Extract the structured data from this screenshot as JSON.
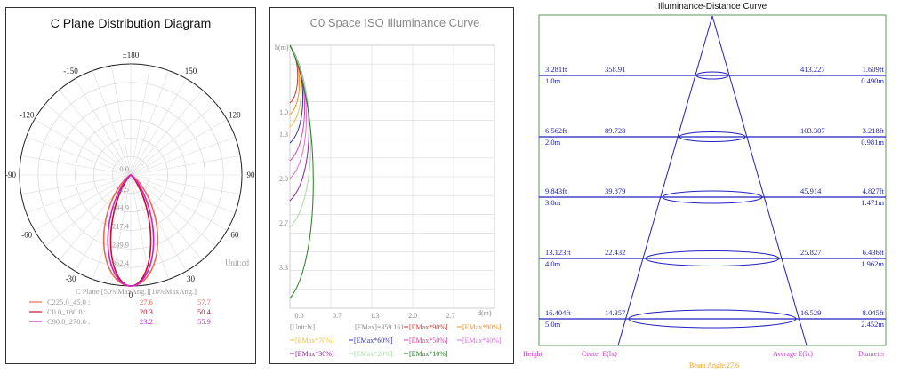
{
  "colors": {
    "c225": "#f06a50",
    "c0": "#c8102e",
    "c90": "#d020c8",
    "grid": "#cccccc",
    "blue": "#2020c0",
    "magenta": "#d030d0",
    "orange": "#f0a020",
    "green": "#5a9a5a"
  },
  "panel1": {
    "title": "C Plane Distribution Diagram",
    "unit": "Unit:cd",
    "angle_labels": [
      "±180",
      "150",
      "120",
      "90",
      "60",
      "30",
      "0",
      "-30",
      "-60",
      "-90",
      "-120",
      "-150"
    ],
    "radial_labels": [
      "0.0",
      "72.5",
      "144.9",
      "217.4",
      "289.9",
      "362.4"
    ],
    "table_header": "C Plane   [50%MaxAng.][10%MaxAng.]",
    "rows": [
      {
        "name": "C225.0_45.0 :",
        "v50": "27.6",
        "v10": "57.7"
      },
      {
        "name": "C0.0_180.0  :",
        "v50": "20.3",
        "v10": "50.4"
      },
      {
        "name": "C90.0_270.0 :",
        "v50": "23.2",
        "v10": "55.9"
      }
    ]
  },
  "panel2": {
    "title": "C0 Space ISO Illuminance Curve",
    "y_axis_label": "h(m)",
    "x_axis_label": "d(m)",
    "y_ticks": [
      "1.0",
      "1.3",
      "2.0",
      "2.7",
      "3.3"
    ],
    "x_ticks": [
      "0.0",
      "0.7",
      "1.3",
      "2.0",
      "2.7"
    ],
    "unit": "[Unit:lx]",
    "emax": "[EMax]=359.161",
    "legend": [
      {
        "label": "[EMax*90%]",
        "color": "#e03030"
      },
      {
        "label": "[EMax*80%]",
        "color": "#f09020"
      },
      {
        "label": "[EMax*70%]",
        "color": "#f0c040"
      },
      {
        "label": "[EMax*60%]",
        "color": "#3030c0"
      },
      {
        "label": "[EMax*50%]",
        "color": "#e040a0"
      },
      {
        "label": "[EMax*40%]",
        "color": "#e070e0"
      },
      {
        "label": "[EMax*30%]",
        "color": "#9020a0"
      },
      {
        "label": "[EMax*20%]",
        "color": "#a0e0a0"
      },
      {
        "label": "[EMax*10%]",
        "color": "#208020"
      }
    ]
  },
  "panel3": {
    "title": "Illuminance-Distance Curve",
    "rows": [
      {
        "ft": "3.281ft",
        "m": "1.0m",
        "center": "358.91",
        "avg": "413.227",
        "dia_ft": "1.609ft",
        "dia_m": "0.490m"
      },
      {
        "ft": "6.562ft",
        "m": "2.0m",
        "center": "89.728",
        "avg": "103.307",
        "dia_ft": "3.218ft",
        "dia_m": "0.981m"
      },
      {
        "ft": "9.843ft",
        "m": "3.0m",
        "center": "39.879",
        "avg": "45.914",
        "dia_ft": "4.827ft",
        "dia_m": "1.471m"
      },
      {
        "ft": "13.123ft",
        "m": "4.0m",
        "center": "22.432",
        "avg": "25.827",
        "dia_ft": "6.436ft",
        "dia_m": "1.962m"
      },
      {
        "ft": "16.404ft",
        "m": "5.0m",
        "center": "14.357",
        "avg": "16.529",
        "dia_ft": "8.045ft",
        "dia_m": "2.452m"
      }
    ],
    "footer": {
      "height": "Height",
      "center": "Center E(lx)",
      "avg": "Average E(lx)",
      "diameter": "Diameter",
      "beam": "Beam Angle:27.6"
    }
  },
  "chart_data": [
    {
      "type": "polar",
      "title": "C Plane Distribution Diagram",
      "unit": "cd",
      "radial_ticks": [
        0.0,
        72.5,
        144.9,
        217.4,
        289.9,
        362.4
      ],
      "series": [
        {
          "name": "C225.0_45.0",
          "half_angle_50": 27.6,
          "half_angle_10": 57.7
        },
        {
          "name": "C0.0_180.0",
          "half_angle_50": 20.3,
          "half_angle_10": 50.4
        },
        {
          "name": "C90.0_270.0",
          "half_angle_50": 23.2,
          "half_angle_10": 55.9
        }
      ]
    },
    {
      "type": "line",
      "title": "C0 Space ISO Illuminance Curve",
      "xlabel": "d(m)",
      "ylabel": "h(m)",
      "emax": 359.161,
      "series": [
        {
          "name": "[EMax*90%]"
        },
        {
          "name": "[EMax*80%]"
        },
        {
          "name": "[EMax*70%]"
        },
        {
          "name": "[EMax*60%]"
        },
        {
          "name": "[EMax*50%]"
        },
        {
          "name": "[EMax*40%]"
        },
        {
          "name": "[EMax*30%]"
        },
        {
          "name": "[EMax*20%]"
        },
        {
          "name": "[EMax*10%]"
        }
      ]
    },
    {
      "type": "table",
      "title": "Illuminance-Distance Curve",
      "columns": [
        "Height",
        "Center E(lx)",
        "Average E(lx)",
        "Diameter"
      ],
      "height_m": [
        1.0,
        2.0,
        3.0,
        4.0,
        5.0
      ],
      "center_lx": [
        358.91,
        89.728,
        39.879,
        22.432,
        14.357
      ],
      "average_lx": [
        413.227,
        103.307,
        45.914,
        25.827,
        16.529
      ],
      "diameter_m": [
        0.49,
        0.981,
        1.471,
        1.962,
        2.452
      ],
      "beam_angle": 27.6
    }
  ]
}
